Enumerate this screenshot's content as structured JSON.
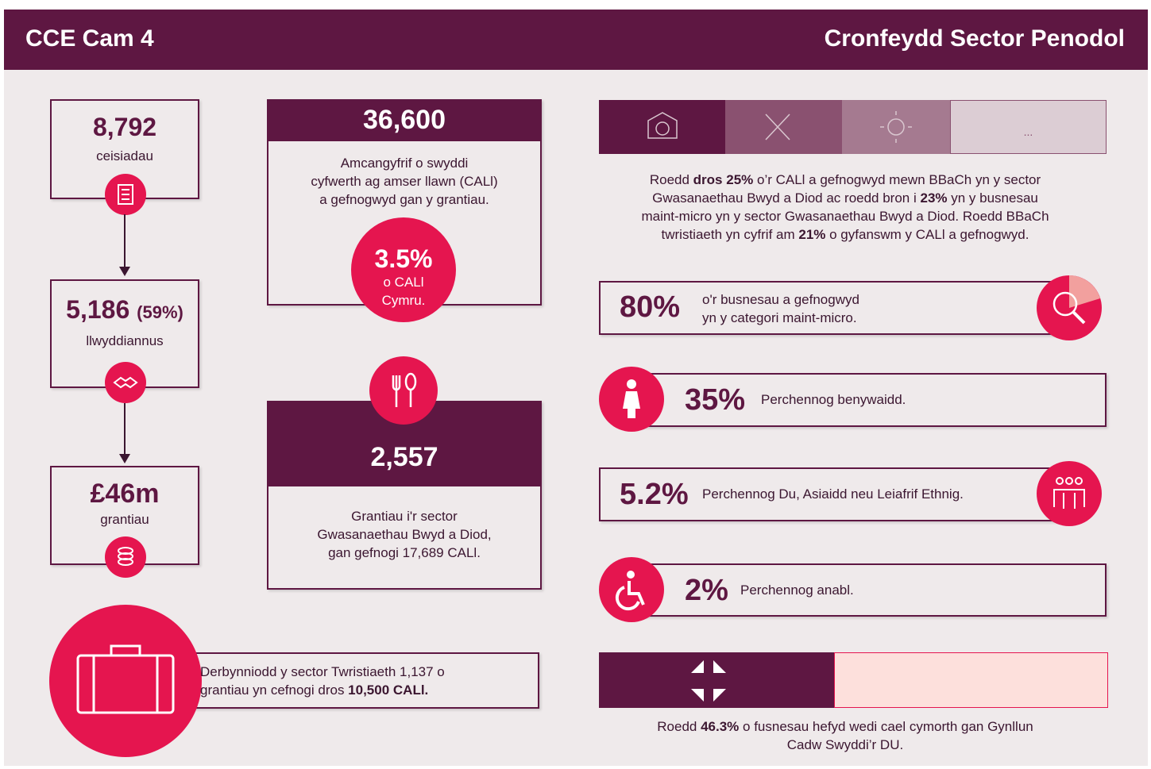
{
  "header": {
    "left": "CCE Cam 4",
    "right": "Cronfeydd Sector Penodol"
  },
  "funnel": [
    {
      "value": "8,792",
      "label": "ceisiadau"
    },
    {
      "value": "5,186",
      "percent": "(59%)",
      "label": "llwyddiannus"
    },
    {
      "value": "£46m",
      "label": "grantiau"
    }
  ],
  "jobs": {
    "value": "36,600",
    "text": [
      [
        "Amcangyfrif o swyddi"
      ],
      [
        "cyfwerth ag amser llawn (CALl)"
      ],
      [
        "a gefnogwyd gan y grantiau."
      ]
    ],
    "share": "3.5%",
    "share_text": [
      "o CALl",
      "Cymru."
    ]
  },
  "food": {
    "value": "2,557",
    "text": [
      [
        "Grantiau i'r sector"
      ],
      [
        "Gwasanaethau Bwyd a Diod,"
      ],
      [
        "gan gefnogi 17,689 CALl."
      ]
    ]
  },
  "tourism": {
    "text": [
      [
        "Derbynniodd y sector Twristiaeth 1,137 o"
      ],
      [
        "grantiau yn cefnogi dros ",
        "10,500 CALl."
      ]
    ]
  },
  "sectors": {
    "more": "...",
    "text": [
      [
        "Roedd ",
        "dros 25%",
        " o’r CALl a gefnogwyd mewn BBaCh yn y sector"
      ],
      [
        "Gwasanaethau Bwyd a Diod ac roedd bron i ",
        "23%",
        " yn y busnesau"
      ],
      [
        "maint-micro yn y sector Gwasanaethau Bwyd a Diod. Roedd BBaCh"
      ],
      [
        "twristiaeth yn cyfrif am ",
        "21%",
        " o gyfanswm y CALl a gefnogwyd."
      ]
    ]
  },
  "stats": [
    {
      "value": "80%",
      "text": [
        [
          "o'r busnesau a gefnogwyd"
        ],
        [
          "yn y categori maint-micro."
        ]
      ]
    },
    {
      "value": "35%",
      "text": [
        [
          "Perchennog benywaidd."
        ]
      ]
    },
    {
      "value": "5.2%",
      "text": [
        [
          "Perchennog Du, Asiaidd neu Leiafrif Ethnig."
        ]
      ]
    },
    {
      "value": "2%",
      "text": [
        [
          "Perchennog anabl."
        ]
      ]
    }
  ],
  "jrs": {
    "text": [
      [
        "Roedd ",
        "46.3%",
        " o fusnesau hefyd wedi cael cymorth gan Gynllun"
      ],
      [
        "Cadw Swyddi’r DU."
      ]
    ]
  }
}
